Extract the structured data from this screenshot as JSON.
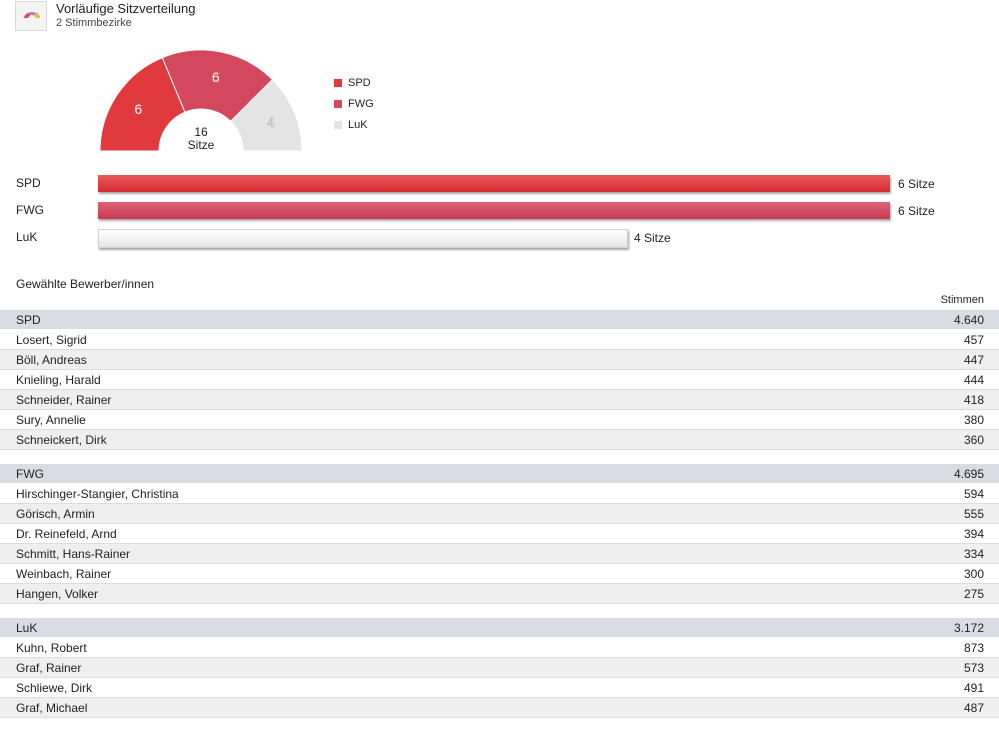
{
  "header": {
    "title": "Vorläufige Sitzverteilung",
    "subtitle": "2 Stimmbezirke"
  },
  "chart_data": {
    "type": "pie",
    "total_seats": 16,
    "total_label": "Sitze",
    "parties": [
      {
        "name": "SPD",
        "seats": 6,
        "color": "#e03a3e",
        "label": "6 Sitze"
      },
      {
        "name": "FWG",
        "seats": 6,
        "color": "#d4485e",
        "label": "6 Sitze"
      },
      {
        "name": "LuK",
        "seats": 4,
        "color": "#e4e4e4",
        "label": "4 Sitze"
      }
    ]
  },
  "candidates": {
    "title": "Gewählte Bewerber/innen",
    "votes_header": "Stimmen",
    "groups": [
      {
        "party": "SPD",
        "total": "4.640",
        "rows": [
          {
            "name": "Losert, Sigrid",
            "votes": "457"
          },
          {
            "name": "Böll, Andreas",
            "votes": "447"
          },
          {
            "name": "Knieling, Harald",
            "votes": "444"
          },
          {
            "name": "Schneider, Rainer",
            "votes": "418"
          },
          {
            "name": "Sury, Annelie",
            "votes": "380"
          },
          {
            "name": "Schneickert, Dirk",
            "votes": "360"
          }
        ]
      },
      {
        "party": "FWG",
        "total": "4.695",
        "rows": [
          {
            "name": "Hirschinger-Stangier, Christina",
            "votes": "594"
          },
          {
            "name": "Görisch, Armin",
            "votes": "555"
          },
          {
            "name": "Dr. Reinefeld, Arnd",
            "votes": "394"
          },
          {
            "name": "Schmitt, Hans-Rainer",
            "votes": "334"
          },
          {
            "name": "Weinbach, Rainer",
            "votes": "300"
          },
          {
            "name": "Hangen, Volker",
            "votes": "275"
          }
        ]
      },
      {
        "party": "LuK",
        "total": "3.172",
        "rows": [
          {
            "name": "Kuhn, Robert",
            "votes": "873"
          },
          {
            "name": "Graf, Rainer",
            "votes": "573"
          },
          {
            "name": "Schliewe, Dirk",
            "votes": "491"
          },
          {
            "name": "Graf, Michael",
            "votes": "487"
          }
        ]
      }
    ]
  }
}
